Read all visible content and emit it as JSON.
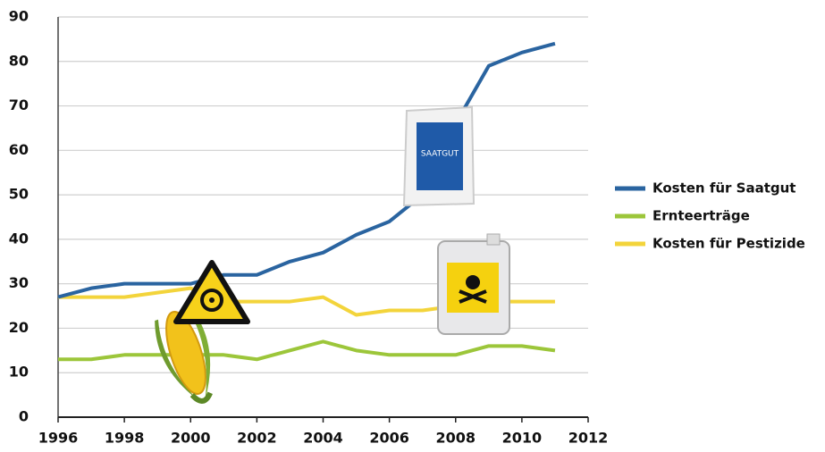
{
  "chart_data": {
    "type": "line",
    "x": [
      1996,
      1997,
      1998,
      1999,
      2000,
      2001,
      2002,
      2003,
      2004,
      2005,
      2006,
      2007,
      2008,
      2009,
      2010,
      2011
    ],
    "series": [
      {
        "name": "Kosten für Saatgut",
        "color": "#2a64a0",
        "values": [
          27,
          29,
          30,
          30,
          30,
          32,
          32,
          35,
          37,
          41,
          44,
          50,
          66,
          79,
          82,
          84
        ]
      },
      {
        "name": "Ernteerträge",
        "color": "#9cc63a",
        "values": [
          13,
          13,
          14,
          14,
          14,
          14,
          13,
          15,
          17,
          15,
          14,
          14,
          14,
          16,
          16,
          15
        ]
      },
      {
        "name": "Kosten für Pestizide",
        "color": "#f3d43b",
        "values": [
          27,
          27,
          27,
          28,
          29,
          26,
          26,
          26,
          27,
          23,
          24,
          24,
          25,
          26,
          26,
          26
        ]
      }
    ],
    "xlim": [
      1996,
      2012
    ],
    "xticks": [
      1996,
      1998,
      2000,
      2002,
      2004,
      2006,
      2008,
      2010,
      2012
    ],
    "ylim": [
      0,
      90
    ],
    "yticks": [
      0,
      10,
      20,
      30,
      40,
      50,
      60,
      70,
      80,
      90
    ],
    "grid": true,
    "legend": "right",
    "annotations": [
      "SAATGUT"
    ]
  }
}
